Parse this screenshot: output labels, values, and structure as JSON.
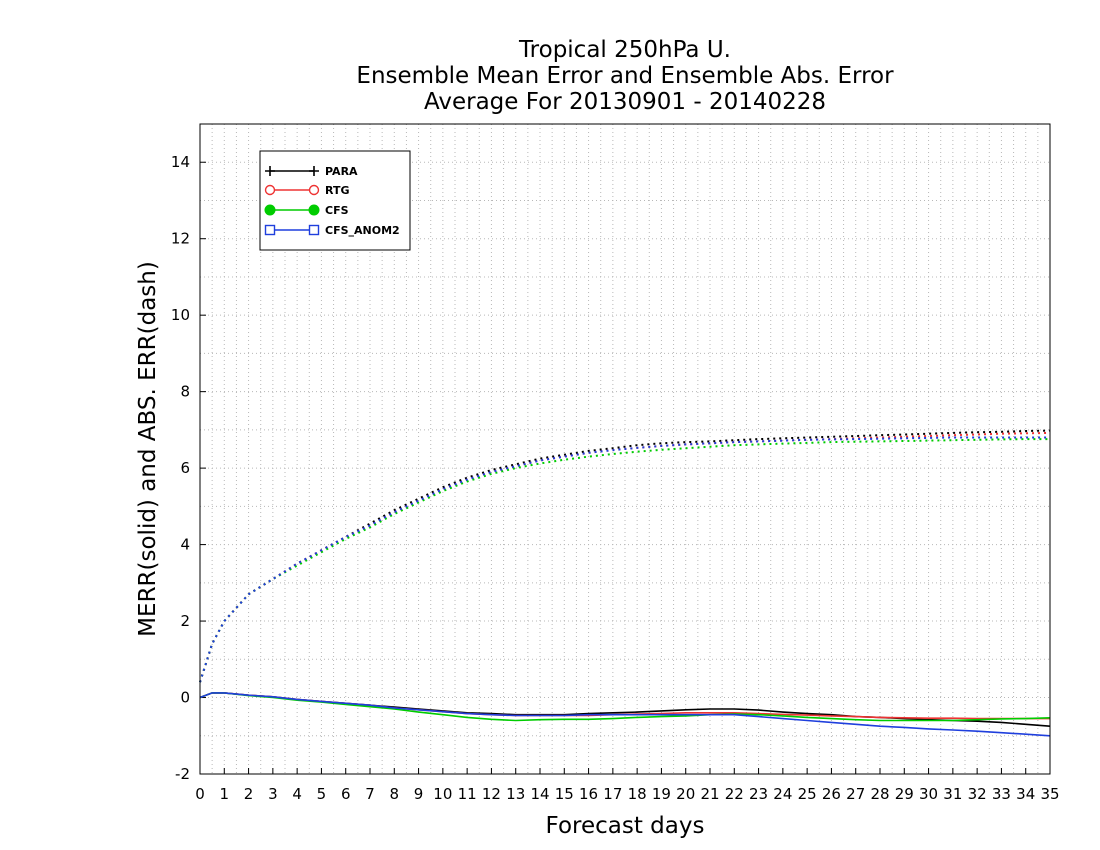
{
  "chart_data": {
    "type": "line",
    "title_lines": [
      "Tropical 250hPa U.",
      "Ensemble Mean Error and Ensemble Abs. Error",
      "Average For 20130901 - 20140228"
    ],
    "xlabel": "Forecast days",
    "ylabel": "MERR(solid) and ABS. ERR(dash)",
    "xlim": [
      0,
      35
    ],
    "ylim": [
      -2,
      15
    ],
    "x_ticks": [
      0,
      1,
      2,
      3,
      4,
      5,
      6,
      7,
      8,
      9,
      10,
      11,
      12,
      13,
      14,
      15,
      16,
      17,
      18,
      19,
      20,
      21,
      22,
      23,
      24,
      25,
      26,
      27,
      28,
      29,
      30,
      31,
      32,
      33,
      34,
      35
    ],
    "y_ticks": [
      -2,
      0,
      2,
      4,
      6,
      8,
      10,
      12,
      14
    ],
    "grid": true,
    "legend_position": "top-left",
    "series": [
      {
        "name": "PARA",
        "color": "#000000",
        "marker": "plus",
        "merr_x": [
          0,
          0.5,
          1,
          2,
          3,
          4,
          5,
          6,
          7,
          8,
          9,
          10,
          11,
          12,
          13,
          14,
          15,
          16,
          17,
          18,
          19,
          20,
          21,
          22,
          23,
          24,
          25,
          26,
          27,
          28,
          29,
          30,
          31,
          32,
          33,
          34,
          35
        ],
        "merr_y": [
          0.0,
          0.12,
          0.12,
          0.06,
          0.02,
          -0.05,
          -0.1,
          -0.15,
          -0.2,
          -0.25,
          -0.3,
          -0.35,
          -0.4,
          -0.42,
          -0.45,
          -0.45,
          -0.45,
          -0.42,
          -0.4,
          -0.38,
          -0.35,
          -0.32,
          -0.3,
          -0.3,
          -0.33,
          -0.38,
          -0.42,
          -0.45,
          -0.5,
          -0.52,
          -0.55,
          -0.58,
          -0.6,
          -0.62,
          -0.65,
          -0.7,
          -0.75
        ],
        "abs_x": [
          0,
          0.5,
          1,
          2,
          3,
          4,
          5,
          6,
          7,
          8,
          9,
          10,
          11,
          12,
          13,
          14,
          15,
          16,
          17,
          18,
          19,
          20,
          21,
          22,
          23,
          24,
          25,
          26,
          27,
          28,
          29,
          30,
          31,
          32,
          33,
          34,
          35
        ],
        "abs_y": [
          0.4,
          1.4,
          2.0,
          2.7,
          3.1,
          3.5,
          3.85,
          4.2,
          4.55,
          4.9,
          5.2,
          5.5,
          5.75,
          5.95,
          6.1,
          6.25,
          6.35,
          6.45,
          6.52,
          6.6,
          6.65,
          6.68,
          6.7,
          6.73,
          6.76,
          6.78,
          6.8,
          6.82,
          6.84,
          6.86,
          6.88,
          6.9,
          6.92,
          6.94,
          6.95,
          6.97,
          6.98
        ]
      },
      {
        "name": "RTG",
        "color": "#ee3333",
        "marker": "open-circle",
        "merr_x": [
          0,
          0.5,
          1,
          2,
          3,
          4,
          5,
          6,
          7,
          8,
          9,
          10,
          11,
          12,
          13,
          14,
          15,
          16,
          17,
          18,
          19,
          20,
          21,
          22,
          23,
          24,
          25,
          26,
          27,
          28,
          29,
          30,
          31,
          32,
          33,
          34,
          35
        ],
        "merr_y": [
          0.0,
          0.12,
          0.12,
          0.06,
          0.02,
          -0.05,
          -0.1,
          -0.15,
          -0.2,
          -0.27,
          -0.32,
          -0.37,
          -0.42,
          -0.45,
          -0.47,
          -0.47,
          -0.47,
          -0.47,
          -0.45,
          -0.43,
          -0.42,
          -0.4,
          -0.4,
          -0.4,
          -0.42,
          -0.44,
          -0.46,
          -0.48,
          -0.5,
          -0.52,
          -0.53,
          -0.54,
          -0.54,
          -0.55,
          -0.55,
          -0.55,
          -0.55
        ],
        "abs_x": [
          0,
          0.5,
          1,
          2,
          3,
          4,
          5,
          6,
          7,
          8,
          9,
          10,
          11,
          12,
          13,
          14,
          15,
          16,
          17,
          18,
          19,
          20,
          21,
          22,
          23,
          24,
          25,
          26,
          27,
          28,
          29,
          30,
          31,
          32,
          33,
          34,
          35
        ],
        "abs_y": [
          0.4,
          1.4,
          2.0,
          2.7,
          3.1,
          3.5,
          3.85,
          4.2,
          4.5,
          4.85,
          5.15,
          5.45,
          5.7,
          5.9,
          6.05,
          6.2,
          6.3,
          6.4,
          6.47,
          6.53,
          6.58,
          6.62,
          6.65,
          6.68,
          6.7,
          6.72,
          6.74,
          6.76,
          6.78,
          6.8,
          6.82,
          6.84,
          6.86,
          6.88,
          6.9,
          6.91,
          6.92
        ]
      },
      {
        "name": "CFS",
        "color": "#00cc00",
        "marker": "filled-circle",
        "merr_x": [
          0,
          0.5,
          1,
          2,
          3,
          4,
          5,
          6,
          7,
          8,
          9,
          10,
          11,
          12,
          13,
          14,
          15,
          16,
          17,
          18,
          19,
          20,
          21,
          22,
          23,
          24,
          25,
          26,
          27,
          28,
          29,
          30,
          31,
          32,
          33,
          34,
          35
        ],
        "merr_y": [
          0.0,
          0.12,
          0.12,
          0.05,
          0.0,
          -0.07,
          -0.12,
          -0.18,
          -0.24,
          -0.3,
          -0.38,
          -0.45,
          -0.52,
          -0.57,
          -0.6,
          -0.58,
          -0.57,
          -0.57,
          -0.55,
          -0.52,
          -0.5,
          -0.48,
          -0.45,
          -0.43,
          -0.45,
          -0.48,
          -0.52,
          -0.55,
          -0.58,
          -0.6,
          -0.6,
          -0.6,
          -0.6,
          -0.58,
          -0.56,
          -0.55,
          -0.53
        ],
        "abs_x": [
          0,
          0.5,
          1,
          2,
          3,
          4,
          5,
          6,
          7,
          8,
          9,
          10,
          11,
          12,
          13,
          14,
          15,
          16,
          17,
          18,
          19,
          20,
          21,
          22,
          23,
          24,
          25,
          26,
          27,
          28,
          29,
          30,
          31,
          32,
          33,
          34,
          35
        ],
        "abs_y": [
          0.4,
          1.4,
          2.0,
          2.7,
          3.1,
          3.45,
          3.8,
          4.15,
          4.45,
          4.8,
          5.1,
          5.4,
          5.65,
          5.85,
          6.0,
          6.12,
          6.22,
          6.3,
          6.37,
          6.43,
          6.48,
          6.52,
          6.56,
          6.6,
          6.62,
          6.64,
          6.66,
          6.68,
          6.69,
          6.7,
          6.71,
          6.72,
          6.73,
          6.74,
          6.75,
          6.76,
          6.76
        ]
      },
      {
        "name": "CFS_ANOM2",
        "color": "#1f3fdd",
        "marker": "open-square",
        "merr_x": [
          0,
          0.5,
          1,
          2,
          3,
          4,
          5,
          6,
          7,
          8,
          9,
          10,
          11,
          12,
          13,
          14,
          15,
          16,
          17,
          18,
          19,
          20,
          21,
          22,
          23,
          24,
          25,
          26,
          27,
          28,
          29,
          30,
          31,
          32,
          33,
          34,
          35
        ],
        "merr_y": [
          0.0,
          0.12,
          0.12,
          0.06,
          0.02,
          -0.05,
          -0.1,
          -0.15,
          -0.2,
          -0.27,
          -0.32,
          -0.37,
          -0.42,
          -0.45,
          -0.47,
          -0.47,
          -0.47,
          -0.45,
          -0.45,
          -0.45,
          -0.45,
          -0.45,
          -0.45,
          -0.45,
          -0.5,
          -0.55,
          -0.6,
          -0.65,
          -0.7,
          -0.75,
          -0.78,
          -0.82,
          -0.85,
          -0.88,
          -0.92,
          -0.96,
          -1.0
        ],
        "abs_x": [
          0,
          0.5,
          1,
          2,
          3,
          4,
          5,
          6,
          7,
          8,
          9,
          10,
          11,
          12,
          13,
          14,
          15,
          16,
          17,
          18,
          19,
          20,
          21,
          22,
          23,
          24,
          25,
          26,
          27,
          28,
          29,
          30,
          31,
          32,
          33,
          34,
          35
        ],
        "abs_y": [
          0.4,
          1.4,
          2.0,
          2.7,
          3.1,
          3.5,
          3.85,
          4.2,
          4.5,
          4.85,
          5.15,
          5.45,
          5.7,
          5.9,
          6.05,
          6.2,
          6.3,
          6.4,
          6.47,
          6.53,
          6.58,
          6.62,
          6.65,
          6.68,
          6.7,
          6.72,
          6.74,
          6.75,
          6.76,
          6.77,
          6.78,
          6.79,
          6.8,
          6.8,
          6.8,
          6.8,
          6.8
        ]
      }
    ]
  }
}
